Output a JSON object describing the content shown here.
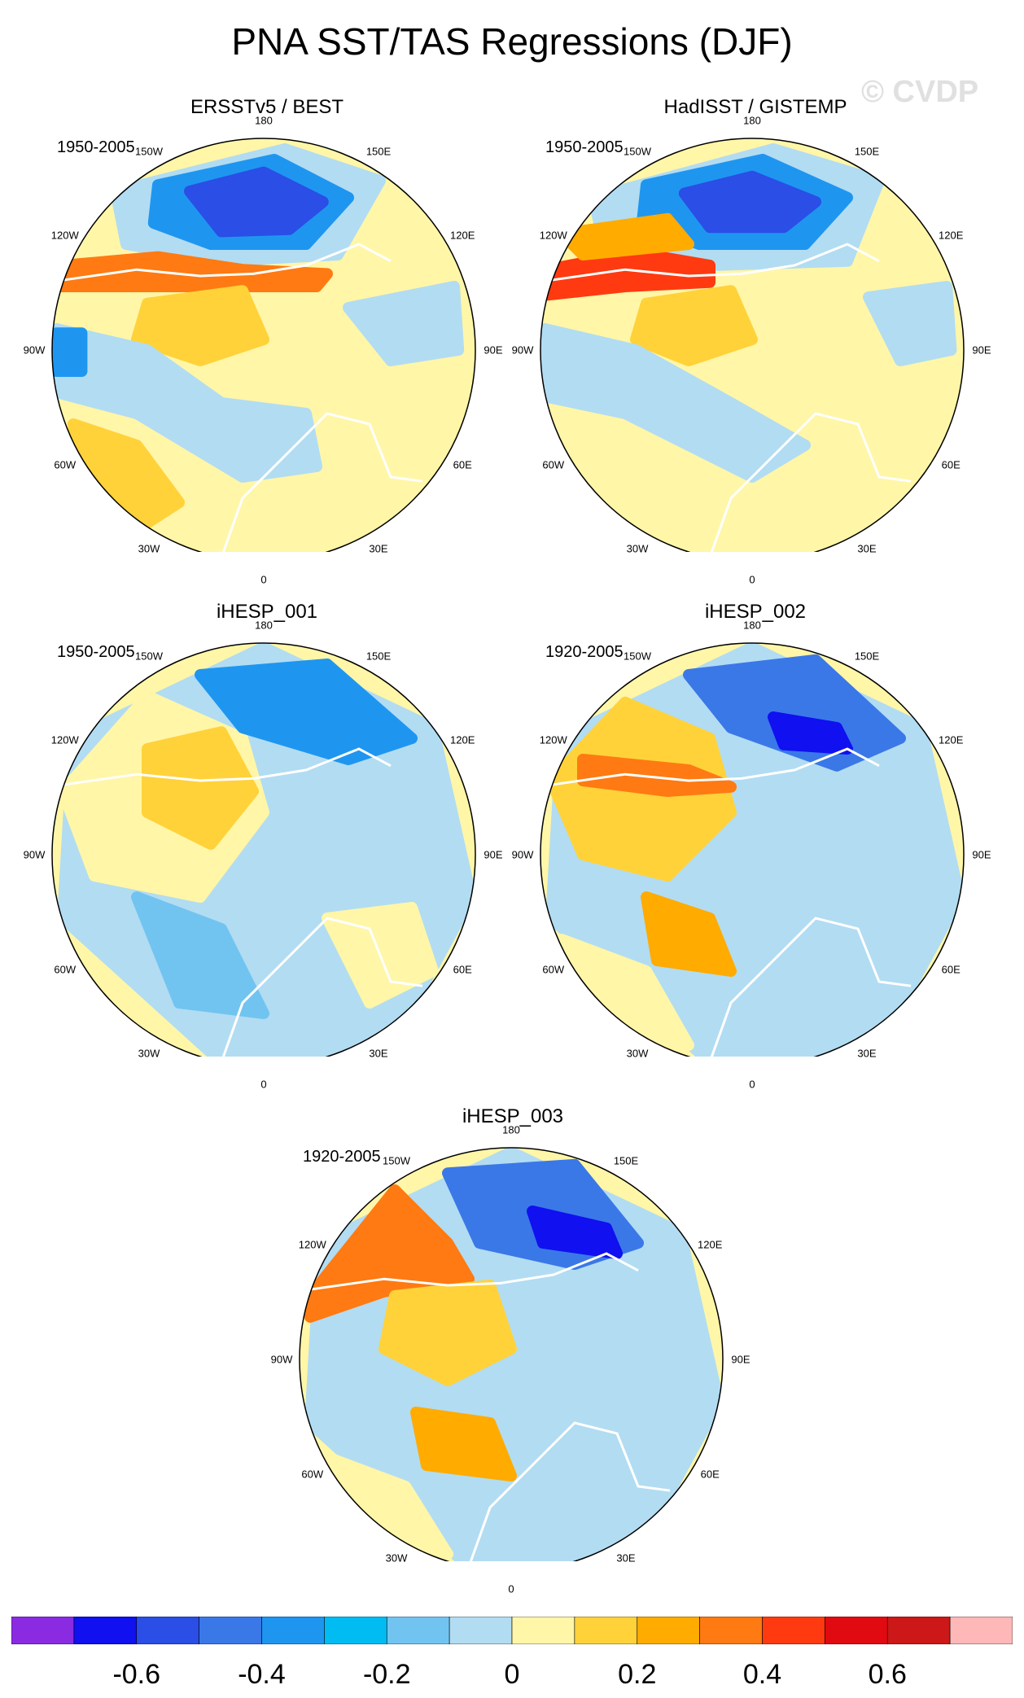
{
  "title": "PNA SST/TAS Regressions (DJF)",
  "watermark": "© CVDP",
  "longitude_labels": [
    "180",
    "150E",
    "120E",
    "90E",
    "60E",
    "30E",
    "0",
    "30W",
    "60W",
    "90W",
    "120W",
    "150W"
  ],
  "panels": [
    {
      "name": "ERSSTv5 / BEST",
      "period": "1950-2005",
      "variant": "obs1"
    },
    {
      "name": "HadISST / GISTEMP",
      "period": "1950-2005",
      "variant": "obs2"
    },
    {
      "name": "iHESP_001",
      "period": "1950-2005",
      "variant": "m1"
    },
    {
      "name": "iHESP_002",
      "period": "1920-2005",
      "variant": "m2"
    },
    {
      "name": "iHESP_003",
      "period": "1920-2005",
      "variant": "m3"
    }
  ],
  "colorbar": {
    "colors": [
      "#8a2be2",
      "#1010f0",
      "#2a4ee6",
      "#3a78e8",
      "#1e96f0",
      "#00bcf2",
      "#72c4f0",
      "#b2dcf2",
      "#fff6a8",
      "#ffd23a",
      "#ffab00",
      "#ff7a12",
      "#ff3a10",
      "#e00a10",
      "#cc1818",
      "#ffb8b8"
    ],
    "labels": [
      "-0.6",
      "-0.4",
      "-0.2",
      "0",
      "0.2",
      "0.4",
      "0.6"
    ]
  }
}
